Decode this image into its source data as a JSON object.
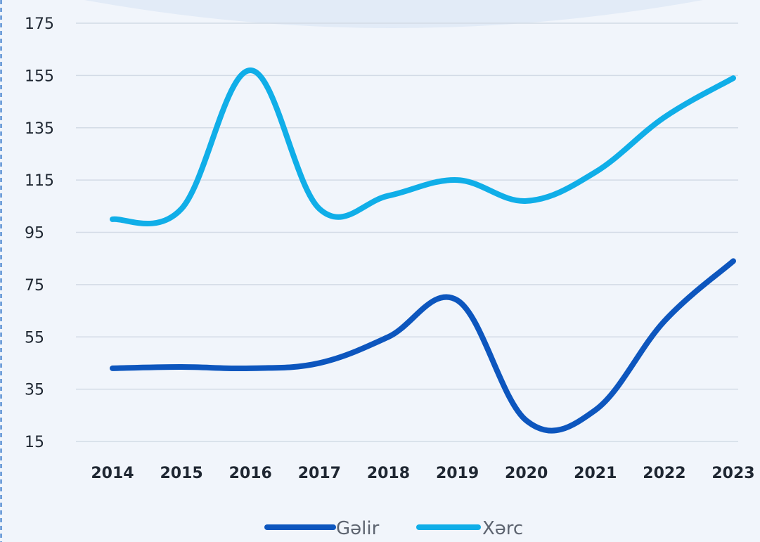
{
  "chart_data": {
    "type": "line",
    "title": "",
    "xlabel": "",
    "ylabel": "",
    "categories": [
      "2014",
      "2015",
      "2016",
      "2017",
      "2018",
      "2019",
      "2020",
      "2021",
      "2022",
      "2023"
    ],
    "y_ticks": [
      15,
      35,
      55,
      75,
      95,
      115,
      135,
      155,
      175
    ],
    "ylim": [
      15,
      175
    ],
    "grid": true,
    "legend_position": "bottom-center",
    "series": [
      {
        "name": "Gəlir",
        "color": "#0d56be",
        "values": [
          43,
          43.5,
          43,
          45,
          55,
          69,
          23,
          27,
          61,
          84
        ]
      },
      {
        "name": "Xərc",
        "color": "#10aee8",
        "values": [
          100,
          104,
          157,
          104,
          109,
          115,
          107,
          118,
          139,
          154
        ]
      }
    ]
  }
}
